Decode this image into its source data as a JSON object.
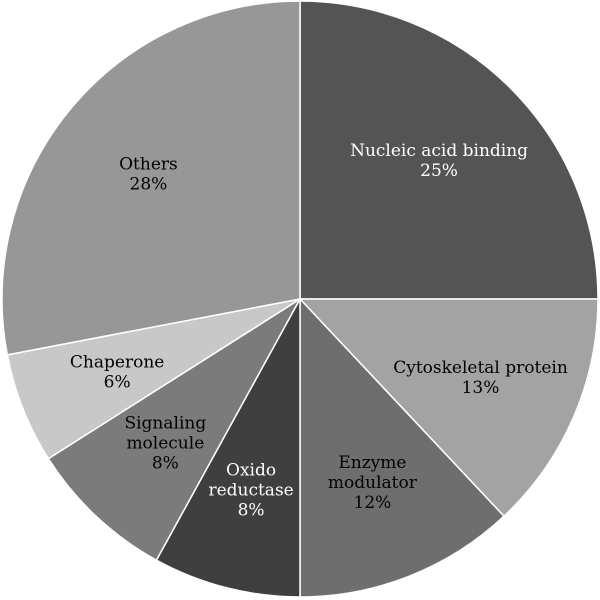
{
  "chart_data": {
    "type": "pie",
    "title": "",
    "slices": [
      {
        "label": [
          "Nucleic acid binding"
        ],
        "value": 25,
        "percent_label": "25%",
        "color": "#545454",
        "text_color": "#ffffff"
      },
      {
        "label": [
          "Cytoskeletal protein"
        ],
        "value": 13,
        "percent_label": "13%",
        "color": "#a3a3a3",
        "text_color": "#000000"
      },
      {
        "label": [
          "Enzyme",
          "modulator"
        ],
        "value": 12,
        "percent_label": "12%",
        "color": "#6e6e6e",
        "text_color": "#000000"
      },
      {
        "label": [
          "Oxido",
          "reductase"
        ],
        "value": 8,
        "percent_label": "8%",
        "color": "#3f3f3f",
        "text_color": "#ffffff"
      },
      {
        "label": [
          "Signaling",
          "molecule"
        ],
        "value": 8,
        "percent_label": "8%",
        "color": "#7b7b7b",
        "text_color": "#000000"
      },
      {
        "label": [
          "Chaperone"
        ],
        "value": 6,
        "percent_label": "6%",
        "color": "#c8c8c8",
        "text_color": "#000000"
      },
      {
        "label": [
          "Others"
        ],
        "value": 28,
        "percent_label": "28%",
        "color": "#979797",
        "text_color": "#000000"
      }
    ],
    "start_angle_deg": 0,
    "direction": "clockwise",
    "legend": "none"
  }
}
